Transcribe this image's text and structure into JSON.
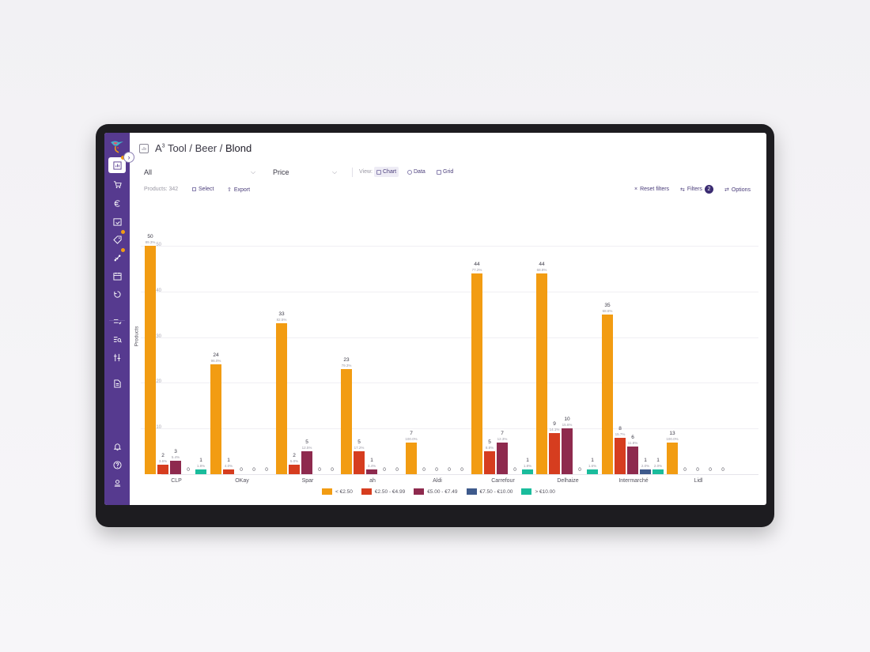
{
  "sidebar": {
    "items": [
      {
        "name": "dashboard",
        "icon": "chart-icon",
        "active": true,
        "badge": true
      },
      {
        "name": "cart",
        "icon": "cart-icon",
        "active": false,
        "badge": false
      },
      {
        "name": "euro",
        "icon": "euro-icon",
        "active": false,
        "badge": false
      },
      {
        "name": "calendar-check",
        "icon": "calendar-check-icon",
        "active": false,
        "badge": false
      },
      {
        "name": "tag",
        "icon": "tag-icon",
        "active": false,
        "badge": true
      },
      {
        "name": "network",
        "icon": "network-icon",
        "active": false,
        "badge": true
      },
      {
        "name": "calendar",
        "icon": "calendar-icon",
        "active": false,
        "badge": false
      },
      {
        "name": "recycle",
        "icon": "recycle-icon",
        "active": false,
        "badge": false
      },
      {
        "name": "list-check",
        "icon": "list-check-icon",
        "active": false,
        "badge": false
      },
      {
        "name": "list-search",
        "icon": "list-search-icon",
        "active": false,
        "badge": false
      },
      {
        "name": "compare",
        "icon": "compare-icon",
        "active": false,
        "badge": false
      },
      {
        "name": "document",
        "icon": "document-icon",
        "active": false,
        "badge": false
      },
      {
        "name": "notifications",
        "icon": "bell-icon",
        "active": false,
        "badge": false
      },
      {
        "name": "help",
        "icon": "help-icon",
        "active": false,
        "badge": false
      },
      {
        "name": "profile",
        "icon": "user-icon",
        "active": false,
        "badge": false
      }
    ]
  },
  "header": {
    "app": "A",
    "app_sup": "3",
    "path": " Tool / Beer / ",
    "current": "Blond"
  },
  "toolbar": {
    "filter_select": "All",
    "group_select": "Price",
    "view_label": "View:",
    "views": [
      {
        "label": "Chart",
        "active": true
      },
      {
        "label": "Data",
        "active": false
      },
      {
        "label": "Grid",
        "active": false
      }
    ]
  },
  "subbar": {
    "products": "Products: 342",
    "select": "Select",
    "export": "Export",
    "reset": "Reset filters",
    "filters": "Filters",
    "filters_count": "2",
    "options": "Options"
  },
  "colors": {
    "sidebar": "#563a8f",
    "accent": "#3b2c72",
    "series": [
      "#f29c12",
      "#d63d1f",
      "#8e2a4e",
      "#3e5a8c",
      "#1abc9c"
    ]
  },
  "chart_data": {
    "type": "bar",
    "title": "",
    "xlabel": "",
    "ylabel": "Products",
    "ylim": [
      0,
      50
    ],
    "yticks": [
      10,
      20,
      30,
      40,
      50
    ],
    "grid": true,
    "legend_position": "bottom",
    "categories": [
      "CLP",
      "OKay",
      "Spar",
      "ah",
      "Aldi",
      "Carrefour",
      "Delhaize",
      "Intermarché",
      "Lidl"
    ],
    "series": [
      {
        "name": "< €2.50",
        "values": [
          50,
          24,
          33,
          23,
          7,
          44,
          44,
          35,
          13
        ],
        "percents": [
          "89.3%",
          "96.0%",
          "82.5%",
          "79.3%",
          "100.0%",
          "77.2%",
          "68.8%",
          "68.6%",
          "100.0%"
        ]
      },
      {
        "name": "€2.50 - €4.99",
        "values": [
          2,
          1,
          2,
          5,
          0,
          5,
          9,
          8,
          0
        ],
        "percents": [
          "3.6%",
          "4.0%",
          "5.0%",
          "17.2%",
          "",
          "8.8%",
          "14.1%",
          "15.7%",
          ""
        ]
      },
      {
        "name": "€5.00 - €7.49",
        "values": [
          3,
          0,
          5,
          1,
          0,
          7,
          10,
          6,
          0
        ],
        "percents": [
          "5.4%",
          "",
          "12.5%",
          "3.4%",
          "",
          "12.3%",
          "15.6%",
          "11.8%",
          ""
        ]
      },
      {
        "name": "€7.50 - €10.00",
        "values": [
          0,
          0,
          0,
          0,
          0,
          0,
          0,
          1,
          0
        ],
        "percents": [
          "",
          "",
          "",
          "",
          "",
          "",
          "",
          "2.0%",
          ""
        ]
      },
      {
        "name": "> €10.00",
        "values": [
          1,
          0,
          0,
          0,
          0,
          1,
          1,
          1,
          0
        ],
        "percents": [
          "1.8%",
          "",
          "",
          "",
          "",
          "1.8%",
          "1.6%",
          "2.0%",
          ""
        ]
      }
    ]
  }
}
